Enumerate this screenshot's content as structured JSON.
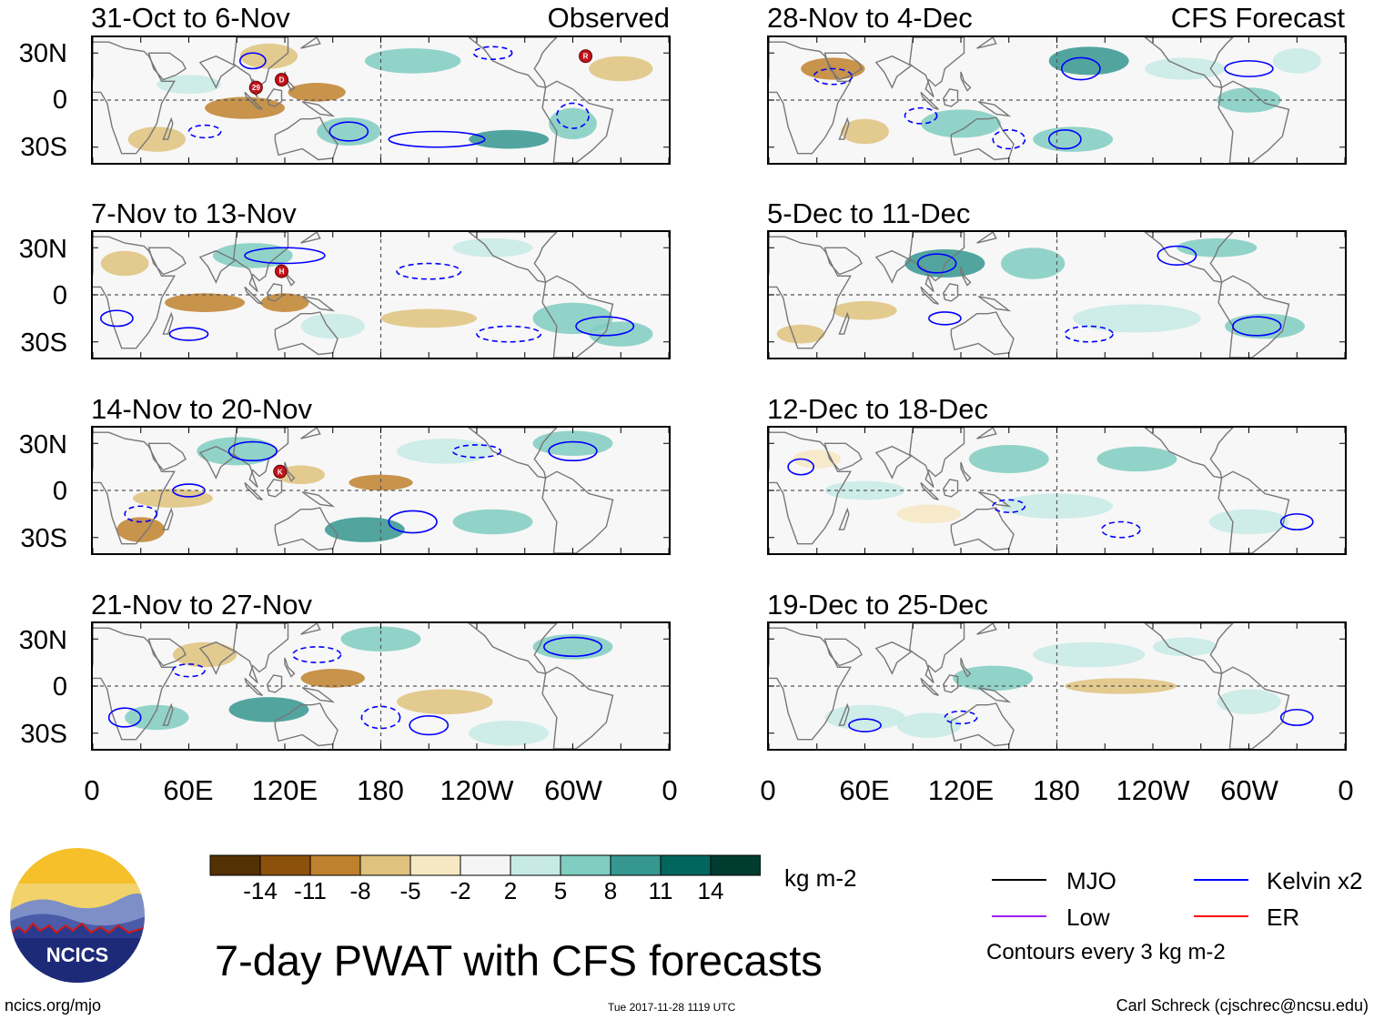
{
  "panels": {
    "left": [
      {
        "title": "31-Oct to 6-Nov",
        "tag": "Observed",
        "storms": [
          "R",
          "D",
          "29"
        ]
      },
      {
        "title": "7-Nov to 13-Nov",
        "tag": "",
        "storms": [
          "H"
        ]
      },
      {
        "title": "14-Nov to 20-Nov",
        "tag": "",
        "storms": [
          "K"
        ]
      },
      {
        "title": "21-Nov to 27-Nov",
        "tag": "",
        "storms": []
      }
    ],
    "right": [
      {
        "title": "28-Nov to 4-Dec",
        "tag": "CFS Forecast"
      },
      {
        "title": "5-Dec to 11-Dec",
        "tag": ""
      },
      {
        "title": "12-Dec to 18-Dec",
        "tag": ""
      },
      {
        "title": "19-Dec to 25-Dec",
        "tag": ""
      }
    ]
  },
  "lat_labels": [
    "30N",
    "0",
    "30S"
  ],
  "lon_labels": [
    "0",
    "60E",
    "120E",
    "180",
    "120W",
    "60W",
    "0"
  ],
  "colorbar": {
    "colors": [
      "#543005",
      "#8c510a",
      "#bf812d",
      "#dfc27d",
      "#f6e8c3",
      "#f5f5f5",
      "#c7eae5",
      "#80cdc1",
      "#35978f",
      "#01665e",
      "#003c30"
    ],
    "ticks": [
      "-14",
      "-11",
      "-8",
      "-5",
      "-2",
      "2",
      "5",
      "8",
      "11",
      "14"
    ],
    "units": "kg m-2"
  },
  "title": "7-day PWAT with CFS forecasts",
  "legend": {
    "items": [
      {
        "label": "MJO",
        "color": "#000000"
      },
      {
        "label": "Kelvin x2",
        "color": "#0000ff"
      },
      {
        "label": "Low",
        "color": "#a020f0"
      },
      {
        "label": "ER",
        "color": "#ff0000"
      }
    ],
    "note": "Contours every 3 kg m-2"
  },
  "logo": {
    "text": "NCICS"
  },
  "footer": {
    "left": "ncics.org/mjo",
    "center": "Tue 2017-11-28 1119 UTC",
    "right": "Carl Schreck (cjschrec@ncsu.edu)"
  }
}
